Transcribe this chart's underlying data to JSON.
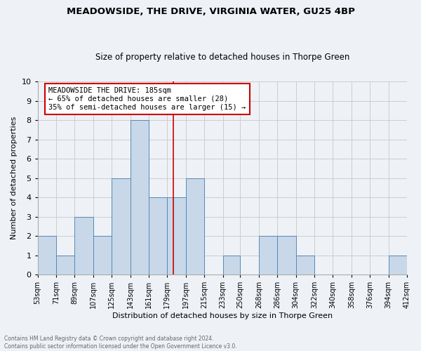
{
  "title": "MEADOWSIDE, THE DRIVE, VIRGINIA WATER, GU25 4BP",
  "subtitle": "Size of property relative to detached houses in Thorpe Green",
  "xlabel": "Distribution of detached houses by size in Thorpe Green",
  "ylabel": "Number of detached properties",
  "footnote1": "Contains HM Land Registry data © Crown copyright and database right 2024.",
  "footnote2": "Contains public sector information licensed under the Open Government Licence v3.0.",
  "annotation_line1": "MEADOWSIDE THE DRIVE: 185sqm",
  "annotation_line2": "← 65% of detached houses are smaller (28)",
  "annotation_line3": "35% of semi-detached houses are larger (15) →",
  "property_value": 185,
  "bin_edges": [
    53,
    71,
    89,
    107,
    125,
    143,
    161,
    179,
    197,
    215,
    233,
    250,
    268,
    286,
    304,
    322,
    340,
    358,
    376,
    394,
    412
  ],
  "bin_labels": [
    "53sqm",
    "71sqm",
    "89sqm",
    "107sqm",
    "125sqm",
    "143sqm",
    "161sqm",
    "179sqm",
    "197sqm",
    "215sqm",
    "233sqm",
    "250sqm",
    "268sqm",
    "286sqm",
    "304sqm",
    "322sqm",
    "340sqm",
    "358sqm",
    "376sqm",
    "394sqm",
    "412sqm"
  ],
  "counts": [
    2,
    1,
    3,
    2,
    5,
    8,
    4,
    4,
    5,
    0,
    1,
    0,
    2,
    2,
    1,
    0,
    0,
    0,
    0,
    1
  ],
  "bar_color": "#c8d8e8",
  "bar_edge_color": "#5588bb",
  "vline_color": "#cc0000",
  "vline_x": 185,
  "annotation_box_color": "#cc0000",
  "grid_color": "#cccccc",
  "background_color": "#eef2f7",
  "ylim": [
    0,
    10
  ],
  "yticks": [
    0,
    1,
    2,
    3,
    4,
    5,
    6,
    7,
    8,
    9,
    10
  ]
}
